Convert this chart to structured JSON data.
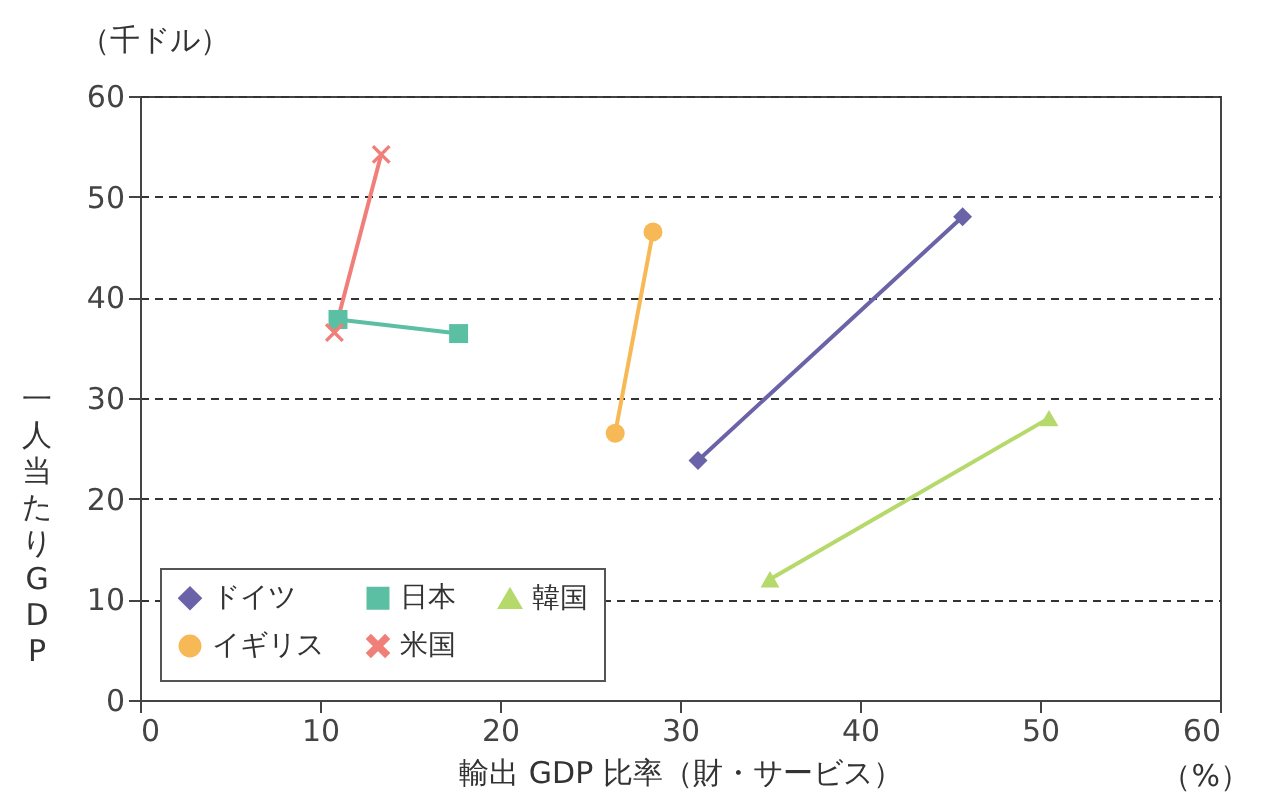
{
  "chart_data": {
    "type": "line",
    "xlabel": "輸出 GDP 比率（財・サービス）",
    "ylabel": "一人当たりGDP",
    "annotations": [
      "（千ドル）",
      "（%）"
    ],
    "xlim": [
      0,
      60
    ],
    "xticks": [
      0,
      10,
      20,
      30,
      40,
      50,
      60
    ],
    "ylim": [
      0,
      60
    ],
    "yticks": [
      0,
      10,
      20,
      30,
      40,
      50,
      60
    ],
    "grid": "y",
    "legend": "bottom left",
    "series": [
      {
        "name": "ドイツ",
        "color": "#6b63a8",
        "marker": "diamond",
        "x": [
          31,
          45.7
        ],
        "values": [
          23.8,
          48
        ]
      },
      {
        "name": "日本",
        "color": "#5bbfa3",
        "marker": "square",
        "x": [
          11,
          17.7
        ],
        "values": [
          37.8,
          36.4
        ]
      },
      {
        "name": "韓国",
        "color": "#b5d96a",
        "marker": "triangle",
        "x": [
          35,
          50.5
        ],
        "values": [
          12,
          28
        ]
      },
      {
        "name": "イギリス",
        "color": "#f7b955",
        "marker": "circle",
        "x": [
          26.4,
          28.5
        ],
        "values": [
          26.5,
          46.5
        ]
      },
      {
        "name": "米国",
        "color": "#ef7f78",
        "marker": "cross",
        "x": [
          10.8,
          13.4
        ],
        "values": [
          36.5,
          54.2
        ]
      }
    ]
  }
}
